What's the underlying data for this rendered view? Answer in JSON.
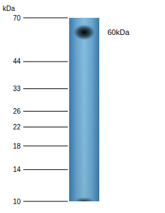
{
  "chart_data": {
    "type": "gel",
    "y_label": "kDa",
    "log": "y",
    "ylim": [
      10,
      70
    ],
    "yticks": [
      70,
      44,
      33,
      26,
      22,
      18,
      14,
      10
    ],
    "values": [
      60,
      10
    ],
    "value_labels": [
      "60kDa",
      null
    ]
  }
}
